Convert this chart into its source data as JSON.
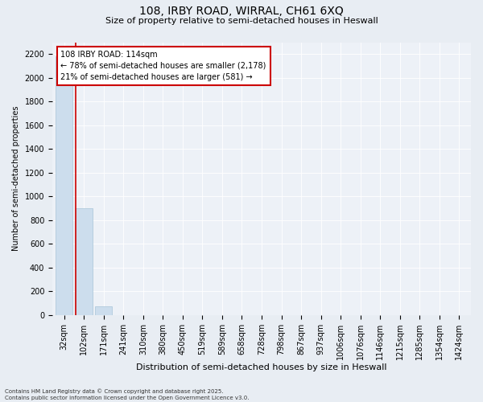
{
  "title_line1": "108, IRBY ROAD, WIRRAL, CH61 6XQ",
  "title_line2": "Size of property relative to semi-detached houses in Heswall",
  "xlabel": "Distribution of semi-detached houses by size in Heswall",
  "ylabel": "Number of semi-detached properties",
  "categories": [
    "32sqm",
    "102sqm",
    "171sqm",
    "241sqm",
    "310sqm",
    "380sqm",
    "450sqm",
    "519sqm",
    "589sqm",
    "658sqm",
    "728sqm",
    "798sqm",
    "867sqm",
    "937sqm",
    "1006sqm",
    "1076sqm",
    "1146sqm",
    "1215sqm",
    "1285sqm",
    "1354sqm",
    "1424sqm"
  ],
  "values": [
    2178,
    900,
    75,
    0,
    0,
    0,
    0,
    0,
    0,
    0,
    0,
    0,
    0,
    0,
    0,
    0,
    0,
    0,
    0,
    0,
    0
  ],
  "bar_color": "#ccdded",
  "bar_edge_color": "#a8c4d8",
  "vline_x": 0.57,
  "vline_color": "#cc0000",
  "ylim": [
    0,
    2300
  ],
  "yticks": [
    0,
    200,
    400,
    600,
    800,
    1000,
    1200,
    1400,
    1600,
    1800,
    2000,
    2200
  ],
  "annotation_title": "108 IRBY ROAD: 114sqm",
  "annotation_line1": "← 78% of semi-detached houses are smaller (2,178)",
  "annotation_line2": "21% of semi-detached houses are larger (581) →",
  "annotation_box_color": "#cc0000",
  "footnote_line1": "Contains HM Land Registry data © Crown copyright and database right 2025.",
  "footnote_line2": "Contains public sector information licensed under the Open Government Licence v3.0.",
  "background_color": "#e8edf3",
  "plot_background_color": "#edf1f7",
  "grid_color": "#ffffff",
  "title_fontsize": 10,
  "subtitle_fontsize": 8,
  "xlabel_fontsize": 8,
  "ylabel_fontsize": 7,
  "tick_fontsize": 7,
  "annot_fontsize": 7,
  "footnote_fontsize": 5
}
